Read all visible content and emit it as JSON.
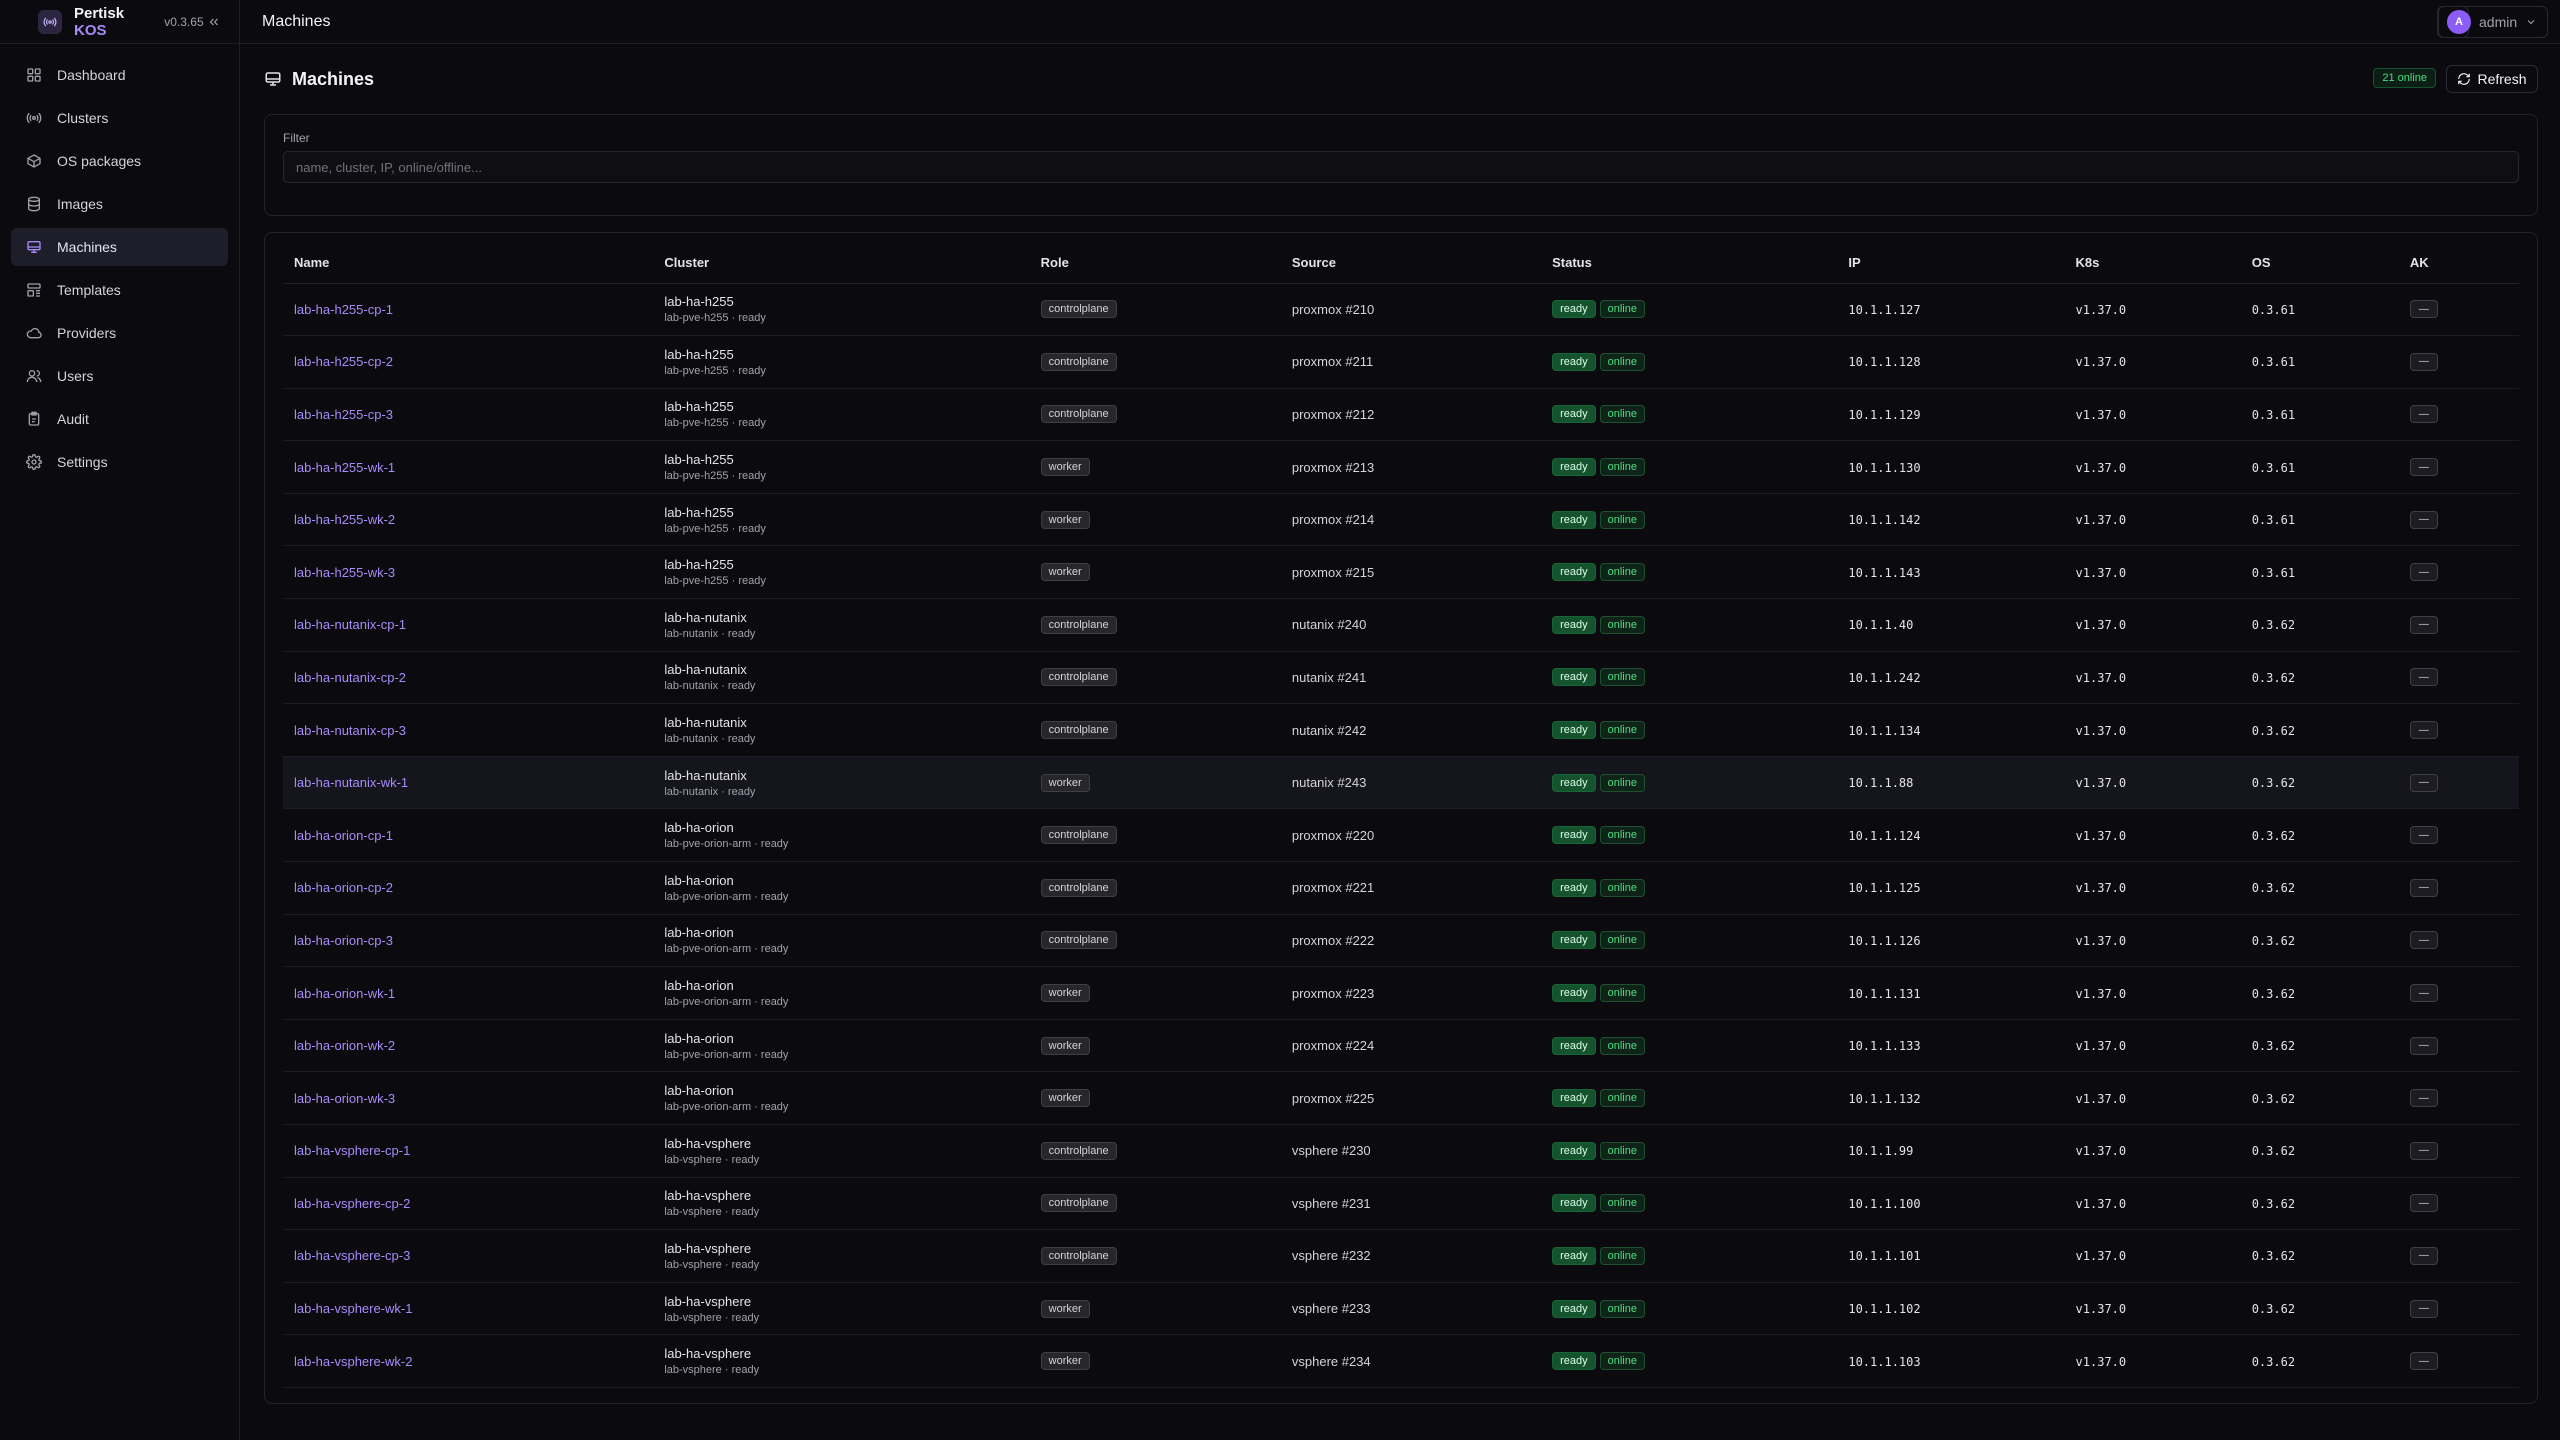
{
  "brand": {
    "name": "Pertisk",
    "accent": "KOS",
    "version": "v0.3.65"
  },
  "topbar": {
    "title": "Machines",
    "user": "admin",
    "avatar_letter": "A"
  },
  "sidebar": {
    "items": [
      {
        "label": "Dashboard",
        "icon": "grid-icon"
      },
      {
        "label": "Clusters",
        "icon": "radio-icon"
      },
      {
        "label": "OS packages",
        "icon": "package-icon"
      },
      {
        "label": "Images",
        "icon": "database-icon"
      },
      {
        "label": "Machines",
        "icon": "monitor-icon",
        "active": true
      },
      {
        "label": "Templates",
        "icon": "template-icon"
      },
      {
        "label": "Providers",
        "icon": "cloud-icon"
      },
      {
        "label": "Users",
        "icon": "users-icon"
      },
      {
        "label": "Audit",
        "icon": "clipboard-icon"
      },
      {
        "label": "Settings",
        "icon": "gear-icon"
      }
    ]
  },
  "page": {
    "title": "Machines",
    "online_badge": "21 online",
    "refresh_label": "Refresh"
  },
  "filter": {
    "label": "Filter",
    "placeholder": "name, cluster, IP, online/offline..."
  },
  "table": {
    "columns": [
      "Name",
      "Cluster",
      "Role",
      "Source",
      "Status",
      "IP",
      "K8s",
      "OS",
      "AK"
    ],
    "rows": [
      {
        "name": "lab-ha-h255-cp-1",
        "cluster": "lab-ha-h255",
        "sub": "lab-pve-h255 · ready",
        "role": "controlplane",
        "source": "proxmox #210",
        "ip": "10.1.1.127",
        "k8s": "v1.37.0",
        "os": "0.3.61"
      },
      {
        "name": "lab-ha-h255-cp-2",
        "cluster": "lab-ha-h255",
        "sub": "lab-pve-h255 · ready",
        "role": "controlplane",
        "source": "proxmox #211",
        "ip": "10.1.1.128",
        "k8s": "v1.37.0",
        "os": "0.3.61"
      },
      {
        "name": "lab-ha-h255-cp-3",
        "cluster": "lab-ha-h255",
        "sub": "lab-pve-h255 · ready",
        "role": "controlplane",
        "source": "proxmox #212",
        "ip": "10.1.1.129",
        "k8s": "v1.37.0",
        "os": "0.3.61"
      },
      {
        "name": "lab-ha-h255-wk-1",
        "cluster": "lab-ha-h255",
        "sub": "lab-pve-h255 · ready",
        "role": "worker",
        "source": "proxmox #213",
        "ip": "10.1.1.130",
        "k8s": "v1.37.0",
        "os": "0.3.61"
      },
      {
        "name": "lab-ha-h255-wk-2",
        "cluster": "lab-ha-h255",
        "sub": "lab-pve-h255 · ready",
        "role": "worker",
        "source": "proxmox #214",
        "ip": "10.1.1.142",
        "k8s": "v1.37.0",
        "os": "0.3.61"
      },
      {
        "name": "lab-ha-h255-wk-3",
        "cluster": "lab-ha-h255",
        "sub": "lab-pve-h255 · ready",
        "role": "worker",
        "source": "proxmox #215",
        "ip": "10.1.1.143",
        "k8s": "v1.37.0",
        "os": "0.3.61"
      },
      {
        "name": "lab-ha-nutanix-cp-1",
        "cluster": "lab-ha-nutanix",
        "sub": "lab-nutanix · ready",
        "role": "controlplane",
        "source": "nutanix #240",
        "ip": "10.1.1.40",
        "k8s": "v1.37.0",
        "os": "0.3.62"
      },
      {
        "name": "lab-ha-nutanix-cp-2",
        "cluster": "lab-ha-nutanix",
        "sub": "lab-nutanix · ready",
        "role": "controlplane",
        "source": "nutanix #241",
        "ip": "10.1.1.242",
        "k8s": "v1.37.0",
        "os": "0.3.62"
      },
      {
        "name": "lab-ha-nutanix-cp-3",
        "cluster": "lab-ha-nutanix",
        "sub": "lab-nutanix · ready",
        "role": "controlplane",
        "source": "nutanix #242",
        "ip": "10.1.1.134",
        "k8s": "v1.37.0",
        "os": "0.3.62"
      },
      {
        "name": "lab-ha-nutanix-wk-1",
        "cluster": "lab-ha-nutanix",
        "sub": "lab-nutanix · ready",
        "role": "worker",
        "source": "nutanix #243",
        "ip": "10.1.1.88",
        "k8s": "v1.37.0",
        "os": "0.3.62",
        "highlight": true
      },
      {
        "name": "lab-ha-orion-cp-1",
        "cluster": "lab-ha-orion",
        "sub": "lab-pve-orion-arm · ready",
        "role": "controlplane",
        "source": "proxmox #220",
        "ip": "10.1.1.124",
        "k8s": "v1.37.0",
        "os": "0.3.62"
      },
      {
        "name": "lab-ha-orion-cp-2",
        "cluster": "lab-ha-orion",
        "sub": "lab-pve-orion-arm · ready",
        "role": "controlplane",
        "source": "proxmox #221",
        "ip": "10.1.1.125",
        "k8s": "v1.37.0",
        "os": "0.3.62"
      },
      {
        "name": "lab-ha-orion-cp-3",
        "cluster": "lab-ha-orion",
        "sub": "lab-pve-orion-arm · ready",
        "role": "controlplane",
        "source": "proxmox #222",
        "ip": "10.1.1.126",
        "k8s": "v1.37.0",
        "os": "0.3.62"
      },
      {
        "name": "lab-ha-orion-wk-1",
        "cluster": "lab-ha-orion",
        "sub": "lab-pve-orion-arm · ready",
        "role": "worker",
        "source": "proxmox #223",
        "ip": "10.1.1.131",
        "k8s": "v1.37.0",
        "os": "0.3.62"
      },
      {
        "name": "lab-ha-orion-wk-2",
        "cluster": "lab-ha-orion",
        "sub": "lab-pve-orion-arm · ready",
        "role": "worker",
        "source": "proxmox #224",
        "ip": "10.1.1.133",
        "k8s": "v1.37.0",
        "os": "0.3.62"
      },
      {
        "name": "lab-ha-orion-wk-3",
        "cluster": "lab-ha-orion",
        "sub": "lab-pve-orion-arm · ready",
        "role": "worker",
        "source": "proxmox #225",
        "ip": "10.1.1.132",
        "k8s": "v1.37.0",
        "os": "0.3.62"
      },
      {
        "name": "lab-ha-vsphere-cp-1",
        "cluster": "lab-ha-vsphere",
        "sub": "lab-vsphere · ready",
        "role": "controlplane",
        "source": "vsphere #230",
        "ip": "10.1.1.99",
        "k8s": "v1.37.0",
        "os": "0.3.62"
      },
      {
        "name": "lab-ha-vsphere-cp-2",
        "cluster": "lab-ha-vsphere",
        "sub": "lab-vsphere · ready",
        "role": "controlplane",
        "source": "vsphere #231",
        "ip": "10.1.1.100",
        "k8s": "v1.37.0",
        "os": "0.3.62"
      },
      {
        "name": "lab-ha-vsphere-cp-3",
        "cluster": "lab-ha-vsphere",
        "sub": "lab-vsphere · ready",
        "role": "controlplane",
        "source": "vsphere #232",
        "ip": "10.1.1.101",
        "k8s": "v1.37.0",
        "os": "0.3.62"
      },
      {
        "name": "lab-ha-vsphere-wk-1",
        "cluster": "lab-ha-vsphere",
        "sub": "lab-vsphere · ready",
        "role": "worker",
        "source": "vsphere #233",
        "ip": "10.1.1.102",
        "k8s": "v1.37.0",
        "os": "0.3.62"
      },
      {
        "name": "lab-ha-vsphere-wk-2",
        "cluster": "lab-ha-vsphere",
        "sub": "lab-vsphere · ready",
        "role": "worker",
        "source": "vsphere #234",
        "ip": "10.1.1.103",
        "k8s": "v1.37.0",
        "os": "0.3.62"
      }
    ],
    "status_ready": "ready",
    "status_online": "online",
    "ak_label": "—"
  }
}
